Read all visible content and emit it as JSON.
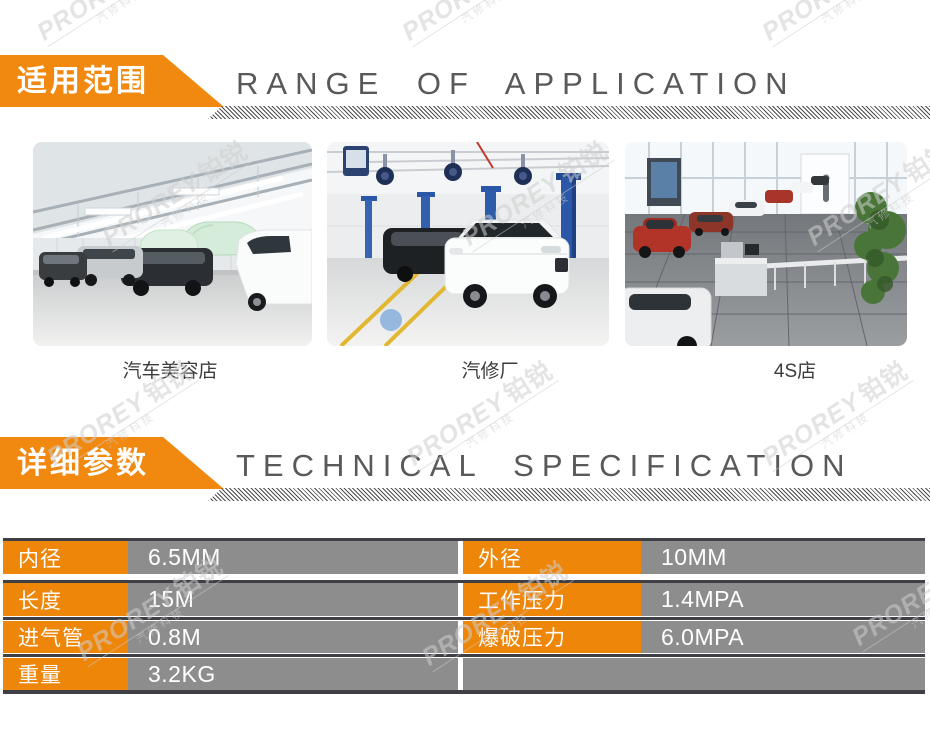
{
  "watermark": {
    "brand": "PROREY",
    "brand_cn": "铂锐",
    "subtitle": "汽修科技"
  },
  "sections": [
    {
      "badge_cn": "适用范围",
      "heading_en": "RANGE OF APPLICATION"
    },
    {
      "badge_cn": "详细参数",
      "heading_en": "TECHNICAL SPECIFICATION"
    }
  ],
  "gallery": {
    "items": [
      {
        "caption": "汽车美容店",
        "photo": "car-beauty-shop"
      },
      {
        "caption": "汽修厂",
        "photo": "auto-repair-shop"
      },
      {
        "caption": "4S店",
        "photo": "4s-dealership"
      }
    ]
  },
  "spec_table": {
    "left_rows": [
      {
        "label": "内径",
        "value": "6.5MM"
      },
      {
        "label": "长度",
        "value": "15M"
      },
      {
        "label": "进气管",
        "value": "0.8M"
      },
      {
        "label": "重量",
        "value": "3.2KG"
      }
    ],
    "right_rows": [
      {
        "label": "外径",
        "value": "10MM"
      },
      {
        "label": "工作压力",
        "value": "1.4MPA"
      },
      {
        "label": "爆破压力",
        "value": "6.0MPA"
      }
    ]
  },
  "colors": {
    "accent_orange": "#F1880F",
    "table_orange": "#EE8609",
    "table_gray": "#8D8D8D",
    "row_line_dark": "#3E4045",
    "heading_gray": "#58595B"
  }
}
